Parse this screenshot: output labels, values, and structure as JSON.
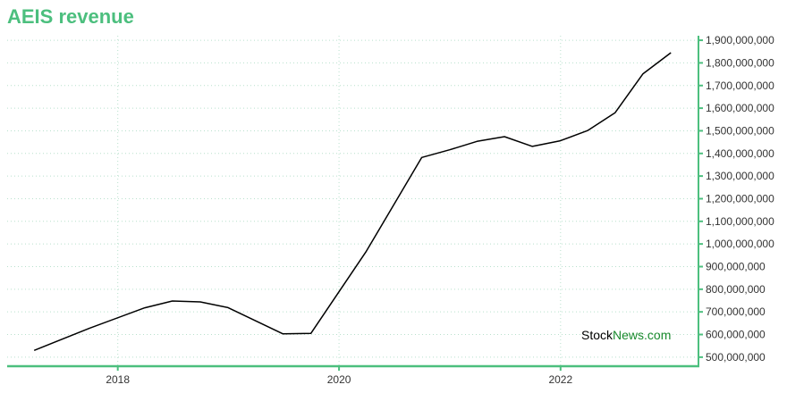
{
  "chart_data": {
    "type": "line",
    "title": "AEIS revenue",
    "xlabel": "",
    "ylabel": "",
    "x_ticks": [
      "2018",
      "2020",
      "2022"
    ],
    "y_ticks": [
      "500,000,000",
      "600,000,000",
      "700,000,000",
      "800,000,000",
      "900,000,000",
      "1,000,000,000",
      "1,100,000,000",
      "1,200,000,000",
      "1,300,000,000",
      "1,400,000,000",
      "1,500,000,000",
      "1,600,000,000",
      "1,700,000,000",
      "1,800,000,000",
      "1,900,000,000"
    ],
    "ylim": [
      460000000,
      1920000000
    ],
    "grid": true,
    "y_axis_position": "right",
    "series": [
      {
        "color": "#000000",
        "points": [
          {
            "x": "2017-03-31",
            "y": 530000000
          },
          {
            "x": "2017-09-30",
            "y": 628000000
          },
          {
            "x": "2018-03-31",
            "y": 718000000
          },
          {
            "x": "2018-06-30",
            "y": 748000000
          },
          {
            "x": "2018-09-30",
            "y": 744000000
          },
          {
            "x": "2018-12-31",
            "y": 719000000
          },
          {
            "x": "2019-06-30",
            "y": 603000000
          },
          {
            "x": "2019-09-30",
            "y": 605000000
          },
          {
            "x": "2020-03-31",
            "y": 968000000
          },
          {
            "x": "2020-09-30",
            "y": 1382000000
          },
          {
            "x": "2020-12-31",
            "y": 1416000000
          },
          {
            "x": "2021-03-31",
            "y": 1453000000
          },
          {
            "x": "2021-06-30",
            "y": 1474000000
          },
          {
            "x": "2021-09-30",
            "y": 1431000000
          },
          {
            "x": "2021-12-31",
            "y": 1456000000
          },
          {
            "x": "2022-03-31",
            "y": 1501000000
          },
          {
            "x": "2022-06-30",
            "y": 1580000000
          },
          {
            "x": "2022-09-30",
            "y": 1752000000
          },
          {
            "x": "2022-12-31",
            "y": 1845000000
          }
        ]
      }
    ]
  },
  "watermark": {
    "part1": "Stock",
    "part2": "News",
    "part3": ".com",
    "color1": "#000000",
    "color2": "#1a8a2e"
  },
  "colors": {
    "accent": "#4cbf7e",
    "grid": "#b8e0cc",
    "line": "#000000"
  }
}
